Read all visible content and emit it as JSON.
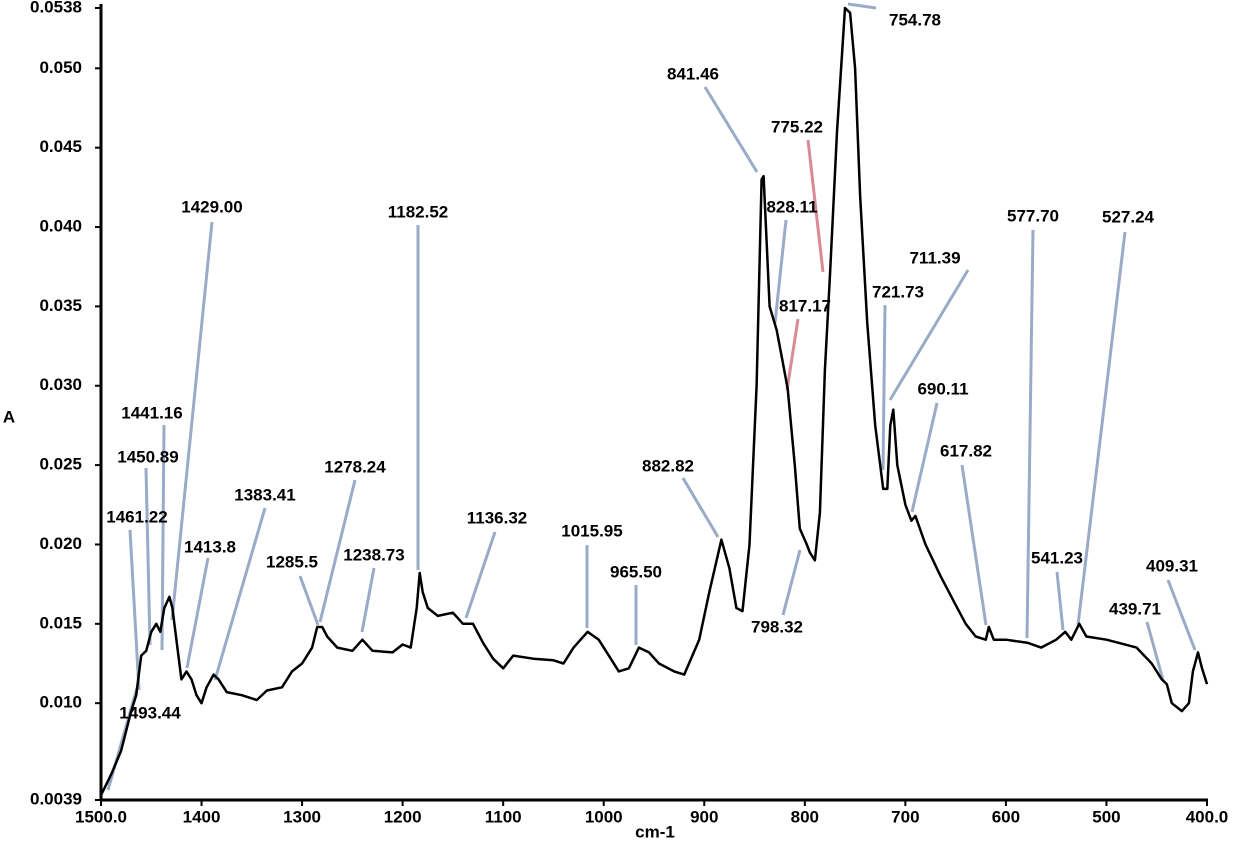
{
  "chart_data": {
    "type": "line",
    "x_label": "cm-1",
    "y_label": "A",
    "color": "#000000",
    "xlim": [
      1500,
      400
    ],
    "ylim": [
      0.0039,
      0.0538
    ],
    "xticks": [
      {
        "value": 1500,
        "label": "1500.0"
      },
      1400,
      1300,
      1200,
      1100,
      1000,
      900,
      800,
      700,
      600,
      500,
      {
        "value": 400,
        "label": "400.0"
      }
    ],
    "yticks": [
      0.0039,
      {
        "value": 0.01,
        "label": "0.010"
      },
      0.015,
      {
        "value": 0.02,
        "label": "0.020"
      },
      0.025,
      {
        "value": 0.03,
        "label": "0.030"
      },
      0.035,
      {
        "value": 0.04,
        "label": "0.040"
      },
      0.045,
      {
        "value": 0.05,
        "label": "0.050"
      },
      0.0538
    ],
    "x": [
      1500,
      1490,
      1480,
      1470,
      1465,
      1460,
      1455,
      1450,
      1445,
      1441,
      1437,
      1432,
      1429,
      1425,
      1420,
      1415,
      1410,
      1405,
      1400,
      1395,
      1388,
      1383,
      1375,
      1360,
      1345,
      1335,
      1320,
      1310,
      1300,
      1290,
      1285,
      1280,
      1275,
      1265,
      1250,
      1240,
      1230,
      1210,
      1200,
      1192,
      1186,
      1183,
      1180,
      1175,
      1165,
      1150,
      1140,
      1130,
      1120,
      1110,
      1100,
      1090,
      1070,
      1050,
      1040,
      1030,
      1016,
      1005,
      995,
      985,
      975,
      965,
      955,
      945,
      930,
      920,
      905,
      895,
      883,
      875,
      868,
      862,
      855,
      848,
      843,
      841,
      835,
      828,
      822,
      817,
      810,
      805,
      798,
      795,
      790,
      785,
      780,
      775,
      768,
      760,
      755,
      750,
      745,
      738,
      730,
      722,
      718,
      715,
      712,
      708,
      700,
      694,
      690,
      680,
      665,
      650,
      640,
      630,
      620,
      617,
      612,
      600,
      578,
      565,
      550,
      541,
      535,
      527,
      520,
      500,
      470,
      455,
      445,
      440,
      435,
      425,
      418,
      414,
      409,
      405,
      400
    ],
    "values": [
      0.0042,
      0.0055,
      0.007,
      0.0095,
      0.0105,
      0.013,
      0.0133,
      0.0145,
      0.015,
      0.0145,
      0.016,
      0.0167,
      0.016,
      0.014,
      0.0115,
      0.012,
      0.0115,
      0.0105,
      0.01,
      0.011,
      0.0118,
      0.0115,
      0.0107,
      0.0105,
      0.0102,
      0.0108,
      0.011,
      0.012,
      0.0125,
      0.0135,
      0.0148,
      0.0148,
      0.0142,
      0.0135,
      0.0133,
      0.014,
      0.0133,
      0.0132,
      0.0137,
      0.0135,
      0.016,
      0.0182,
      0.017,
      0.016,
      0.0155,
      0.0157,
      0.015,
      0.015,
      0.0138,
      0.0128,
      0.0122,
      0.013,
      0.0128,
      0.0127,
      0.0125,
      0.0135,
      0.0145,
      0.014,
      0.013,
      0.012,
      0.0122,
      0.0135,
      0.0132,
      0.0125,
      0.012,
      0.0118,
      0.014,
      0.017,
      0.0203,
      0.0185,
      0.016,
      0.0158,
      0.02,
      0.03,
      0.043,
      0.0432,
      0.035,
      0.0335,
      0.0315,
      0.0298,
      0.025,
      0.021,
      0.02,
      0.0195,
      0.019,
      0.022,
      0.031,
      0.037,
      0.046,
      0.0538,
      0.0535,
      0.05,
      0.042,
      0.034,
      0.0275,
      0.0235,
      0.0235,
      0.0275,
      0.0285,
      0.025,
      0.0225,
      0.0215,
      0.0218,
      0.02,
      0.018,
      0.0162,
      0.015,
      0.0142,
      0.014,
      0.0148,
      0.014,
      0.014,
      0.0138,
      0.0135,
      0.014,
      0.0145,
      0.014,
      0.015,
      0.0142,
      0.014,
      0.0135,
      0.0125,
      0.0115,
      0.0112,
      0.01,
      0.0095,
      0.01,
      0.012,
      0.0132,
      0.0122,
      0.0112
    ],
    "annotations": [
      "1461.22",
      "1450.89",
      "1441.16",
      "1429.00",
      "1413.8",
      "1383.41",
      "1493.44",
      "1285.5",
      "1278.24",
      "1238.73",
      "1182.52",
      "1136.32",
      "1015.95",
      "965.50",
      "882.82",
      "841.46",
      "828.11",
      "775.22",
      "817.17",
      "798.32",
      "754.78",
      "721.73",
      "711.39",
      "690.11",
      "617.82",
      "577.70",
      "527.24",
      "541.23",
      "439.71",
      "409.31"
    ]
  }
}
